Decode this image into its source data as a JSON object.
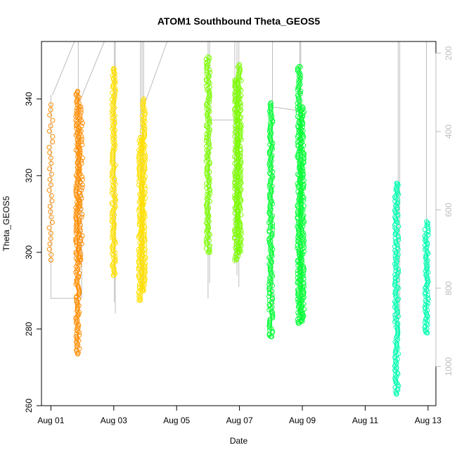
{
  "chart_data": {
    "type": "scatter",
    "title": "ATOM1 Southbound Theta_GEOS5",
    "xlabel": "Date",
    "ylabel": "Theta_GEOS5",
    "xlim": [
      -0.3,
      12.25
    ],
    "ylim": [
      260,
      355
    ],
    "x_ticks": [
      {
        "value": 0,
        "label": "Aug 01"
      },
      {
        "value": 2,
        "label": "Aug 03"
      },
      {
        "value": 4,
        "label": "Aug 05"
      },
      {
        "value": 6,
        "label": "Aug 07"
      },
      {
        "value": 8,
        "label": "Aug 09"
      },
      {
        "value": 10,
        "label": "Aug 11"
      },
      {
        "value": 12,
        "label": "Aug 13"
      }
    ],
    "y_ticks": [
      260,
      280,
      300,
      320,
      340
    ],
    "y2_label": "",
    "y2_ticks": [
      200,
      400,
      600,
      800,
      1000
    ],
    "y2_range": [
      1100,
      170
    ],
    "x_unit": "days since Aug 01",
    "grid": false,
    "legend": "none",
    "series": [
      {
        "color": "#FF8C00",
        "segments": [
          {
            "x": 0.0,
            "ymin": 298,
            "ymax": 338.5,
            "density": 0.35
          },
          {
            "x": 0.85,
            "ymin": 273.5,
            "ymax": 342,
            "density": 1.0
          },
          {
            "x": 0.95,
            "ymin": 298,
            "ymax": 338,
            "density": 0.8
          }
        ]
      },
      {
        "color": "#FFE000",
        "segments": [
          {
            "x": 2.0,
            "ymin": 294,
            "ymax": 348,
            "density": 1.0
          },
          {
            "x": 2.85,
            "ymin": 287.5,
            "ymax": 330,
            "density": 1.0
          },
          {
            "x": 2.95,
            "ymin": 290,
            "ymax": 340,
            "density": 1.0
          }
        ]
      },
      {
        "color": "#7CFC00",
        "segments": [
          {
            "x": 5.0,
            "ymin": 300,
            "ymax": 351,
            "density": 1.0
          },
          {
            "x": 5.9,
            "ymin": 298,
            "ymax": 345,
            "density": 1.0
          },
          {
            "x": 6.0,
            "ymin": 300,
            "ymax": 349,
            "density": 1.0
          }
        ]
      },
      {
        "color": "#00FF33",
        "segments": [
          {
            "x": 7.0,
            "ymin": 278,
            "ymax": 339,
            "density": 1.0
          },
          {
            "x": 7.9,
            "ymin": 281.5,
            "ymax": 348.5,
            "density": 1.0
          },
          {
            "x": 8.0,
            "ymin": 282,
            "ymax": 338,
            "density": 1.0
          }
        ]
      },
      {
        "color": "#00FFB0",
        "segments": [
          {
            "x": 11.0,
            "ymin": 263,
            "ymax": 318,
            "density": 1.0
          },
          {
            "x": 11.95,
            "ymin": 279,
            "ymax": 308,
            "density": 1.0
          }
        ]
      }
    ],
    "grey_profiles": {
      "color": "#bdbdbd",
      "vertical_lines": [
        {
          "x": 0.87,
          "y1": 355,
          "y2": 307
        },
        {
          "x": 2.02,
          "y1": 355,
          "y2": 287
        },
        {
          "x": 2.05,
          "y1": 355,
          "y2": 284
        },
        {
          "x": 2.85,
          "y1": 355,
          "y2": 290
        },
        {
          "x": 2.9,
          "y1": 355,
          "y2": 289
        },
        {
          "x": 2.95,
          "y1": 355,
          "y2": 293
        },
        {
          "x": 5.0,
          "y1": 355,
          "y2": 288
        },
        {
          "x": 5.05,
          "y1": 355,
          "y2": 292
        },
        {
          "x": 5.85,
          "y1": 355,
          "y2": 297
        },
        {
          "x": 5.92,
          "y1": 355,
          "y2": 294
        },
        {
          "x": 5.98,
          "y1": 355,
          "y2": 291
        },
        {
          "x": 7.05,
          "y1": 355,
          "y2": 284
        },
        {
          "x": 7.92,
          "y1": 355,
          "y2": 287
        },
        {
          "x": 7.95,
          "y1": 355,
          "y2": 282
        },
        {
          "x": 11.05,
          "y1": 355,
          "y2": 278
        },
        {
          "x": 11.1,
          "y1": 355,
          "y2": 283
        },
        {
          "x": 11.95,
          "y1": 355,
          "y2": 285
        }
      ],
      "polylines": [
        [
          [
            0.0,
            341
          ],
          [
            0.0,
            288
          ],
          [
            0.98,
            288
          ],
          [
            0.98,
            318
          ]
        ],
        [
          [
            0.05,
            341
          ],
          [
            0.75,
            355
          ]
        ],
        [
          [
            0.85,
            338
          ],
          [
            1.7,
            355
          ]
        ],
        [
          [
            2.95,
            338
          ],
          [
            3.7,
            355
          ]
        ],
        [
          [
            5.0,
            334.5
          ],
          [
            5.9,
            334.5
          ],
          [
            5.9,
            340
          ]
        ],
        [
          [
            7.0,
            338
          ],
          [
            7.85,
            337
          ],
          [
            8.0,
            335
          ]
        ]
      ]
    }
  }
}
